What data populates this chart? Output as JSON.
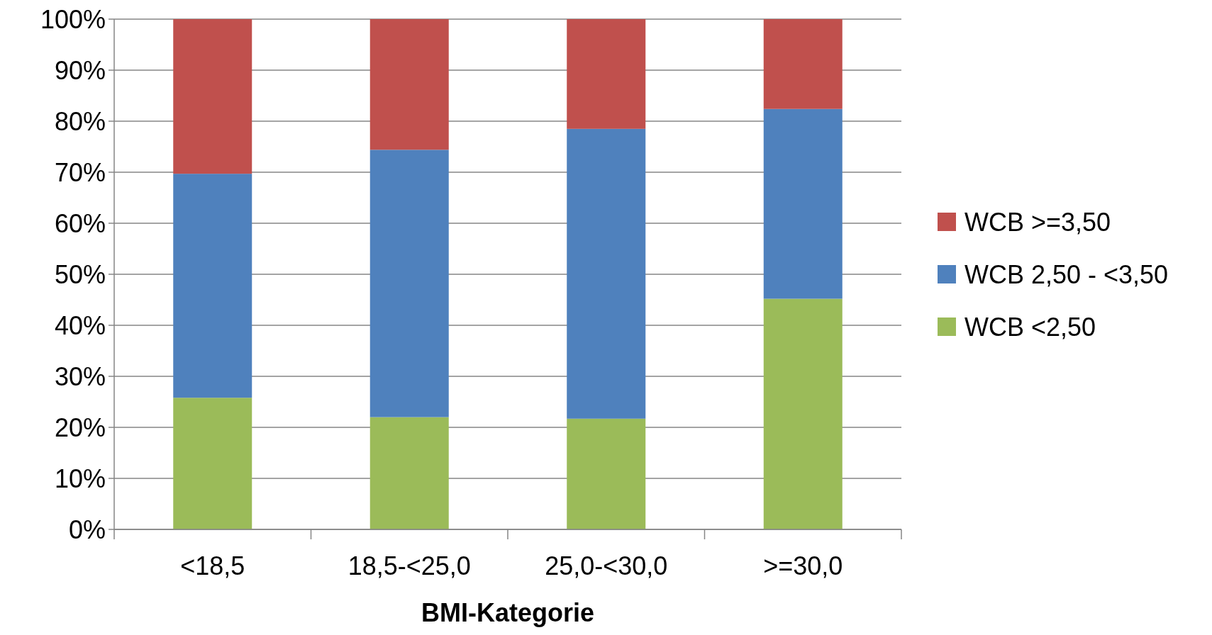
{
  "chart_data": {
    "type": "bar",
    "stacked": true,
    "xlabel": "BMI-Kategorie",
    "categories": [
      "<18,5",
      "18,5-<25,0",
      "25,0-<30,0",
      ">=30,0"
    ],
    "series": [
      {
        "name": "WCB <2,50",
        "color": "#9bbb59",
        "values": [
          25.8,
          22.0,
          21.7,
          45.2
        ]
      },
      {
        "name": "WCB 2,50 - <3,50",
        "color": "#4f81bd",
        "values": [
          43.9,
          52.4,
          56.8,
          37.2
        ]
      },
      {
        "name": "WCB >=3,50",
        "color": "#c0504d",
        "values": [
          30.3,
          25.6,
          21.5,
          17.6
        ]
      }
    ],
    "ylim": [
      0,
      100
    ],
    "yticks": [
      {
        "value": 0,
        "label": "0%"
      },
      {
        "value": 10,
        "label": "10%"
      },
      {
        "value": 20,
        "label": "20%"
      },
      {
        "value": 30,
        "label": "30%"
      },
      {
        "value": 40,
        "label": "40%"
      },
      {
        "value": 50,
        "label": "50%"
      },
      {
        "value": 60,
        "label": "60%"
      },
      {
        "value": 70,
        "label": "70%"
      },
      {
        "value": 80,
        "label": "80%"
      },
      {
        "value": 90,
        "label": "90%"
      },
      {
        "value": 100,
        "label": "100%"
      }
    ],
    "grid": "y",
    "legend": "right"
  }
}
